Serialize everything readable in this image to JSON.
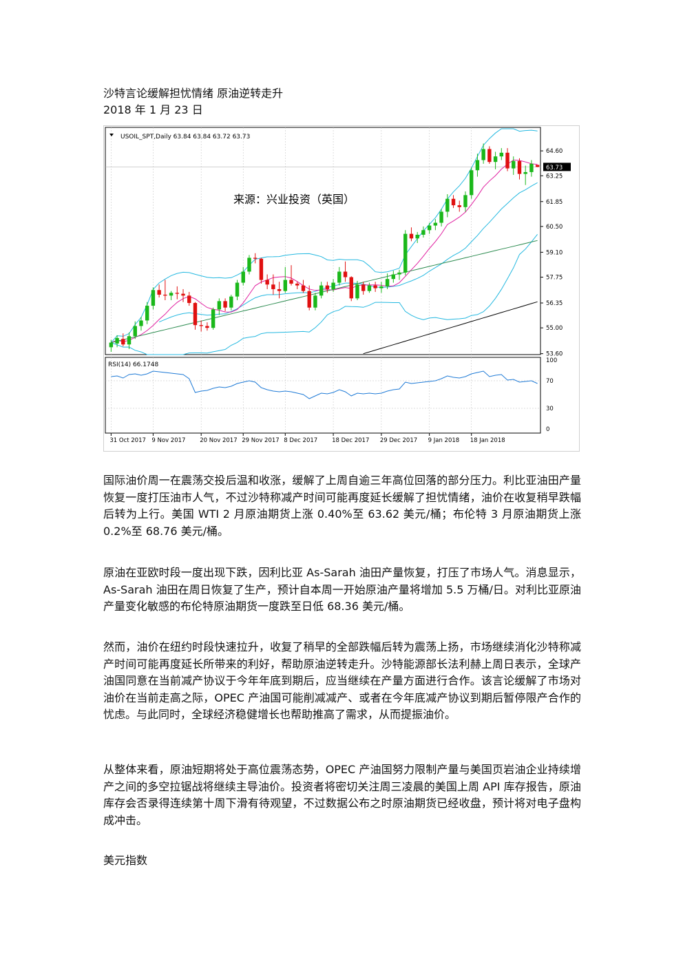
{
  "article": {
    "title": "沙特言论缓解担忧情绪  原油逆转走升",
    "date": "2018 年 1 月 23 日",
    "paragraphs": [
      "国际油价周一在震荡交投后温和收涨，缓解了上周自逾三年高位回落的部分压力。利比亚油田产量恢复一度打压油市人气，不过沙特称减产时间可能再度延长缓解了担忧情绪，油价在收复稍早跌幅后转为上行。美国 WTI 2 月原油期货上涨 0.40%至 63.62 美元/桶；布伦特 3 月原油期货上涨 0.2%至 68.76 美元/桶。",
      "原油在亚欧时段一度出现下跌，因利比亚 As-Sarah 油田产量恢复，打压了市场人气。消息显示，As-Sarah 油田在周日恢复了生产，预计自本周一开始原油产量将增加 5.5 万桶/日。对利比亚原油产量变化敏感的布伦特原油期货一度跌至日低 68.36 美元/桶。",
      "然而，油价在纽约时段快速拉升，收复了稍早的全部跌幅后转为震荡上扬，市场继续消化沙特称减产时间可能再度延长所带来的利好，帮助原油逆转走升。沙特能源部长法利赫上周日表示，全球产油国同意在当前减产协议于今年年底到期后，应当继续在产量方面进行合作。该言论缓解了市场对油价在当前走高之际，OPEC 产油国可能削减减产、或者在今年底减产协议到期后暂停限产合作的忧虑。与此同时，全球经济稳健增长也帮助推高了需求，从而提振油价。",
      "从整体来看，原油短期将处于高位震荡态势，OPEC 产油国努力限制产量与美国页岩油企业持续增产之间的多空拉锯战将继续主导油价。投资者将密切关注周三凌晨的美国上周 API 库存报告，原油库存会否录得连续第十周下滑有待观望，不过数据公布之时原油期货已经收盘，预计将对电子盘构成冲击。"
    ],
    "section_heading": "美元指数"
  },
  "chart_data": {
    "type": "candlestick",
    "header": "USOIL_SPT,Daily  63.84 63.84 63.72 63.73",
    "source_label": "来源：兴业投资（英国）",
    "last_price_label": "63.73",
    "price_ticks": [
      "64.60",
      "63.25",
      "61.85",
      "60.50",
      "59.10",
      "57.75",
      "56.35",
      "55.00",
      "53.60"
    ],
    "price_tick_values": [
      64.6,
      63.25,
      61.85,
      60.5,
      59.1,
      57.75,
      56.35,
      55.0,
      53.6
    ],
    "price_range": [
      53.55,
      65.8
    ],
    "date_labels": [
      "31 Oct 2017",
      "9 Nov 2017",
      "20 Nov 2017",
      "29 Nov 2017",
      "8 Dec 2017",
      "18 Dec 2017",
      "29 Dec 2017",
      "9 Jan 2018",
      "18 Jan 2018"
    ],
    "date_label_bar_index": [
      0,
      7,
      15,
      22,
      29,
      37,
      45,
      53,
      60
    ],
    "candles": [
      [
        53.95,
        54.35,
        53.7,
        54.2
      ],
      [
        54.15,
        54.6,
        53.95,
        54.45
      ],
      [
        54.4,
        54.7,
        54.0,
        54.1
      ],
      [
        54.1,
        54.75,
        53.85,
        54.55
      ],
      [
        54.55,
        55.35,
        54.4,
        55.1
      ],
      [
        55.1,
        55.6,
        54.85,
        55.4
      ],
      [
        55.4,
        56.4,
        55.2,
        56.2
      ],
      [
        56.2,
        57.2,
        56.0,
        57.05
      ],
      [
        57.05,
        57.35,
        56.65,
        56.8
      ],
      [
        56.8,
        57.6,
        56.5,
        56.75
      ],
      [
        56.75,
        57.0,
        56.5,
        56.9
      ],
      [
        56.9,
        57.25,
        56.55,
        56.85
      ],
      [
        56.85,
        57.1,
        56.4,
        56.75
      ],
      [
        56.75,
        56.95,
        56.2,
        56.35
      ],
      [
        56.35,
        56.4,
        54.9,
        55.15
      ],
      [
        55.15,
        55.4,
        54.8,
        55.1
      ],
      [
        55.1,
        55.3,
        54.85,
        55.0
      ],
      [
        55.0,
        56.1,
        54.9,
        56.0
      ],
      [
        56.0,
        56.6,
        55.7,
        56.45
      ],
      [
        56.45,
        56.6,
        55.9,
        56.1
      ],
      [
        56.1,
        56.8,
        55.95,
        56.7
      ],
      [
        56.7,
        57.6,
        56.5,
        57.45
      ],
      [
        57.45,
        58.3,
        57.3,
        58.05
      ],
      [
        58.05,
        58.95,
        57.9,
        58.8
      ],
      [
        58.8,
        59.05,
        58.5,
        58.75
      ],
      [
        58.75,
        58.8,
        57.4,
        57.6
      ],
      [
        57.6,
        57.9,
        57.1,
        57.35
      ],
      [
        57.35,
        57.9,
        56.8,
        57.1
      ],
      [
        57.1,
        57.5,
        56.6,
        57.0
      ],
      [
        57.0,
        58.3,
        56.9,
        57.6
      ],
      [
        57.6,
        58.4,
        57.3,
        57.4
      ],
      [
        57.4,
        57.5,
        57.1,
        57.3
      ],
      [
        57.3,
        57.6,
        56.9,
        57.0
      ],
      [
        57.0,
        57.3,
        55.95,
        56.1
      ],
      [
        56.1,
        56.9,
        55.95,
        56.75
      ],
      [
        56.75,
        57.5,
        56.6,
        57.3
      ],
      [
        57.3,
        57.5,
        56.9,
        57.1
      ],
      [
        57.1,
        57.65,
        56.95,
        57.45
      ],
      [
        57.45,
        58.3,
        57.3,
        58.05
      ],
      [
        58.05,
        58.6,
        57.5,
        57.75
      ],
      [
        57.75,
        57.8,
        56.45,
        56.6
      ],
      [
        56.6,
        57.55,
        56.5,
        57.35
      ],
      [
        57.35,
        57.5,
        56.8,
        57.0
      ],
      [
        57.0,
        57.45,
        56.9,
        57.3
      ],
      [
        57.3,
        57.5,
        56.95,
        57.15
      ],
      [
        57.15,
        57.5,
        56.9,
        57.25
      ],
      [
        57.25,
        57.95,
        57.1,
        57.65
      ],
      [
        57.65,
        58.1,
        57.45,
        57.9
      ],
      [
        57.9,
        58.15,
        57.6,
        58.0
      ],
      [
        58.0,
        60.3,
        57.85,
        60.1
      ],
      [
        60.1,
        60.45,
        59.7,
        59.85
      ],
      [
        59.85,
        60.2,
        59.6,
        60.05
      ],
      [
        60.05,
        60.5,
        59.9,
        60.3
      ],
      [
        60.3,
        60.7,
        60.1,
        60.55
      ],
      [
        60.55,
        60.9,
        60.3,
        60.7
      ],
      [
        60.7,
        61.45,
        60.5,
        61.3
      ],
      [
        61.3,
        62.25,
        61.0,
        62.0
      ],
      [
        62.0,
        62.2,
        61.5,
        61.65
      ],
      [
        61.65,
        61.9,
        61.3,
        61.55
      ],
      [
        61.55,
        62.4,
        61.3,
        62.2
      ],
      [
        62.2,
        63.7,
        62.0,
        63.55
      ],
      [
        63.55,
        64.45,
        63.2,
        64.1
      ],
      [
        64.1,
        65.0,
        63.9,
        64.7
      ],
      [
        64.7,
        64.85,
        63.9,
        64.0
      ],
      [
        64.0,
        64.55,
        63.6,
        64.3
      ],
      [
        64.3,
        64.75,
        64.1,
        64.5
      ],
      [
        64.5,
        64.75,
        63.5,
        63.65
      ],
      [
        63.65,
        64.3,
        63.3,
        64.05
      ],
      [
        64.05,
        64.2,
        63.05,
        63.35
      ],
      [
        63.35,
        63.8,
        62.75,
        63.45
      ],
      [
        63.45,
        64.1,
        63.2,
        63.9
      ],
      [
        63.84,
        63.84,
        63.72,
        63.73
      ]
    ],
    "rsi": {
      "label": "RSI(14) 66.1748",
      "ticks": [
        "100",
        "70",
        "30",
        "0"
      ],
      "tick_values": [
        100,
        70,
        30,
        0
      ],
      "values": [
        76,
        77,
        74,
        79,
        80,
        78,
        80,
        84,
        83,
        82,
        81,
        80,
        79,
        73,
        53,
        55,
        56,
        59,
        61,
        60,
        62,
        66,
        68,
        70,
        68,
        60,
        57,
        55,
        54,
        55,
        54,
        52,
        50,
        44,
        48,
        52,
        51,
        53,
        57,
        54,
        48,
        52,
        51,
        52,
        51,
        52,
        55,
        57,
        58,
        68,
        66,
        67,
        68,
        69,
        70,
        73,
        77,
        75,
        74,
        76,
        80,
        82,
        84,
        76,
        78,
        79,
        71,
        72,
        68,
        69,
        70,
        66
      ]
    },
    "colors": {
      "up": "#1ab81a",
      "down": "#e01010",
      "ma_fast": "#e01ea0",
      "band": "#23b8e0",
      "ma_green": "#2a8a4e",
      "ma_black": "#000000",
      "rsi": "#1e7ad6"
    }
  }
}
